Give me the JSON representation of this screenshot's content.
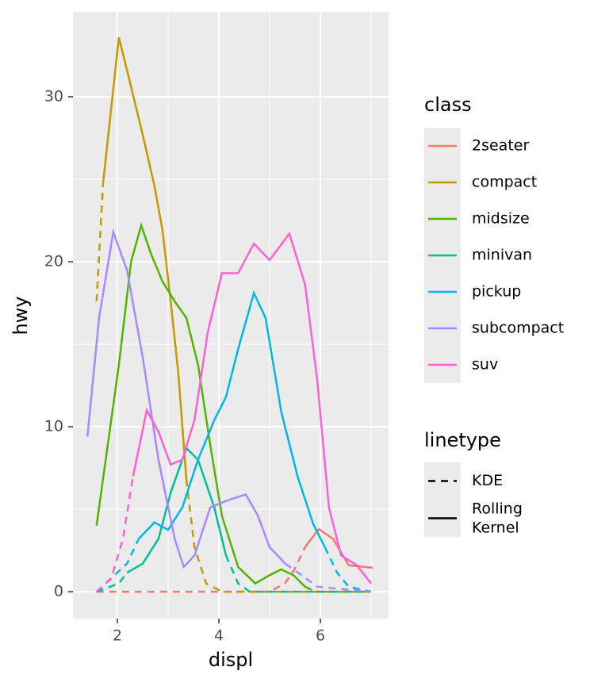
{
  "chart_data": {
    "type": "line",
    "x_label": "displ",
    "y_label": "hwy",
    "xlim": [
      1.125,
      7.344
    ],
    "ylim": [
      -1.63,
      35.14
    ],
    "xticks": [
      2,
      4,
      6
    ],
    "yticks": [
      0,
      10,
      20,
      30
    ],
    "x_minor_ticks": [
      3,
      5,
      7
    ],
    "y_minor_ticks": [
      5,
      15,
      25
    ],
    "grid": true,
    "legend_title": "class",
    "linetype_legend": {
      "title": "linetype",
      "entries": [
        {
          "label": "KDE",
          "dash": "dashed"
        },
        {
          "label": "Rolling\nKernel",
          "dash": "solid"
        }
      ]
    },
    "series": [
      {
        "name": "2seater",
        "color": "#F8766D",
        "linetype": "KDE",
        "x": [
          1.59,
          3,
          4,
          5,
          5.3,
          5.47,
          5.7
        ],
        "values": [
          0,
          0,
          0,
          0,
          0.5,
          1.25,
          2.7
        ]
      },
      {
        "name": "2seater",
        "color": "#F8766D",
        "linetype": "Rolling\nKernel",
        "x": [
          5.7,
          5.97,
          6.25,
          6.56,
          7.03
        ],
        "values": [
          2.7,
          3.8,
          3.2,
          1.6,
          1.45
        ]
      },
      {
        "name": "compact",
        "color": "#C49A00",
        "linetype": "KDE",
        "x": [
          1.59,
          1.72
        ],
        "values": [
          17.6,
          24.8
        ]
      },
      {
        "name": "compact",
        "color": "#C49A00",
        "linetype": "Rolling\nKernel",
        "x": [
          1.72,
          2.03,
          2.27,
          2.5,
          2.73,
          2.89,
          3.05,
          3.2,
          3.36
        ],
        "values": [
          24.8,
          33.6,
          30.6,
          27.7,
          24.6,
          21.9,
          17.6,
          13.3,
          6.8
        ]
      },
      {
        "name": "compact",
        "color": "#C49A00",
        "linetype": "KDE",
        "x": [
          3.36,
          3.52,
          3.75,
          4.06,
          5,
          6,
          7
        ],
        "values": [
          6.8,
          2.7,
          0.5,
          0,
          0,
          0,
          0
        ]
      },
      {
        "name": "midsize",
        "color": "#53B400",
        "linetype": "Rolling\nKernel",
        "x": [
          1.59,
          2.03,
          2.27,
          2.47,
          2.66,
          2.89,
          3.13,
          3.36,
          3.59,
          3.83,
          4.06,
          4.38,
          4.72,
          5.0,
          5.23,
          5.47,
          5.7
        ],
        "values": [
          4.0,
          13.75,
          20,
          22.2,
          20.5,
          18.8,
          17.6,
          16.6,
          13.75,
          8.9,
          4.6,
          1.5,
          0.5,
          1.0,
          1.35,
          1.0,
          0.3
        ]
      },
      {
        "name": "midsize",
        "color": "#53B400",
        "linetype": "KDE",
        "x": [
          5.7,
          5.9,
          7
        ],
        "values": [
          0.3,
          0,
          0
        ]
      },
      {
        "name": "minivan",
        "color": "#00C094",
        "linetype": "KDE",
        "x": [
          1.59,
          2.03,
          2.19
        ],
        "values": [
          0,
          0.5,
          1.15
        ]
      },
      {
        "name": "minivan",
        "color": "#00C094",
        "linetype": "Rolling\nKernel",
        "x": [
          2.19,
          2.5,
          2.81,
          3.05,
          3.36,
          3.59,
          3.91,
          4.14
        ],
        "values": [
          1.15,
          1.7,
          3.2,
          6,
          8.7,
          8,
          5.1,
          2.2
        ]
      },
      {
        "name": "minivan",
        "color": "#00C094",
        "linetype": "KDE",
        "x": [
          4.14,
          4.38,
          4.61,
          7
        ],
        "values": [
          2.2,
          0.5,
          0,
          0
        ]
      },
      {
        "name": "pickup",
        "color": "#00B6EB",
        "linetype": "KDE",
        "x": [
          1.59,
          2.19,
          2.42
        ],
        "values": [
          0,
          1.7,
          3.2
        ]
      },
      {
        "name": "pickup",
        "color": "#00B6EB",
        "linetype": "Rolling\nKernel",
        "x": [
          2.42,
          2.73,
          3.0,
          3.28,
          3.59,
          3.91,
          4.14,
          4.38,
          4.69,
          4.92,
          5.23,
          5.55,
          5.86,
          6.09
        ],
        "values": [
          3.2,
          4.2,
          3.75,
          5.1,
          8,
          10.4,
          11.8,
          14.7,
          18.1,
          16.6,
          10.9,
          7,
          4.1,
          2.7
        ]
      },
      {
        "name": "pickup",
        "color": "#00B6EB",
        "linetype": "KDE",
        "x": [
          6.09,
          6.33,
          6.56,
          7
        ],
        "values": [
          2.7,
          1.15,
          0.3,
          0
        ]
      },
      {
        "name": "subcompact",
        "color": "#A58AFF",
        "linetype": "Rolling\nKernel",
        "x": [
          1.41,
          1.64,
          1.92,
          2.19,
          2.5,
          2.81,
          3.13,
          3.31,
          3.52,
          3.83,
          4.14,
          4.53,
          4.77,
          5.0,
          5.31
        ],
        "values": [
          9.4,
          16.6,
          21.8,
          19.5,
          14.2,
          8,
          3.2,
          1.5,
          2.2,
          5.1,
          5.5,
          5.9,
          4.6,
          2.7,
          1.7
        ]
      },
      {
        "name": "subcompact",
        "color": "#A58AFF",
        "linetype": "KDE",
        "x": [
          5.31,
          5.63,
          5.94,
          7
        ],
        "values": [
          1.7,
          1.0,
          0.3,
          0
        ]
      },
      {
        "name": "suv",
        "color": "#FB61D7",
        "linetype": "KDE",
        "x": [
          1.59,
          1.88,
          2.11,
          2.31
        ],
        "values": [
          0,
          0.8,
          3.2,
          7
        ]
      },
      {
        "name": "suv",
        "color": "#FB61D7",
        "linetype": "Rolling\nKernel",
        "x": [
          2.31,
          2.58,
          2.81,
          3.05,
          3.28,
          3.52,
          3.78,
          4.06,
          4.38,
          4.69,
          5.0,
          5.39,
          5.7,
          5.94,
          6.17,
          6.41,
          6.72,
          7
        ],
        "values": [
          7,
          11,
          9.7,
          7.7,
          8,
          10.4,
          15.7,
          19.3,
          19.3,
          21.1,
          20.1,
          21.7,
          18.6,
          12.8,
          5.1,
          2.2,
          1.6,
          0.5
        ]
      }
    ]
  }
}
